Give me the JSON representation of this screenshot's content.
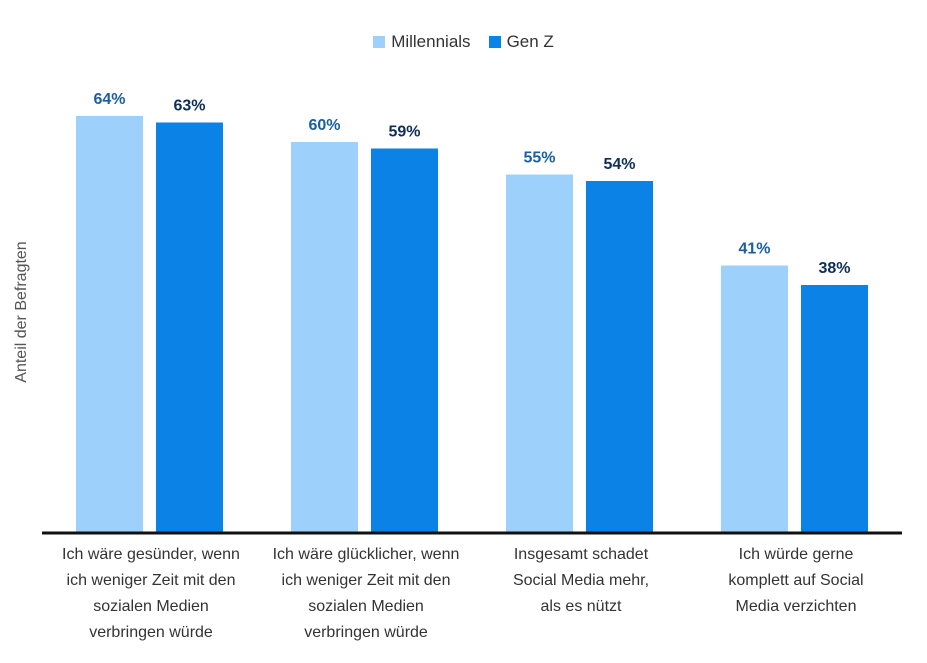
{
  "chart_data": {
    "type": "bar",
    "categories": [
      "Ich wäre gesünder, wenn\nich weniger Zeit mit den\nsozialen Medien\nverbringen würde",
      "Ich wäre glücklicher, wenn\nich weniger Zeit mit den\nsozialen Medien\nverbringen würde",
      "Insgesamt schadet\nSocial Media mehr,\nals es nützt",
      "Ich würde gerne\nkomplett auf Social\nMedia verzichten"
    ],
    "series": [
      {
        "name": "Millennials",
        "color": "#9dd0fa",
        "label_color": "#1a5fa0",
        "values": [
          64,
          60,
          55,
          41
        ]
      },
      {
        "name": "Gen Z",
        "color": "#0a82e6",
        "label_color": "#0d2f55",
        "values": [
          63,
          59,
          54,
          38
        ]
      }
    ],
    "value_suffix": "%",
    "ylabel": "Anteil der Befragten",
    "ylim": [
      0,
      72
    ],
    "grid": false,
    "legend_position": "top-center"
  }
}
